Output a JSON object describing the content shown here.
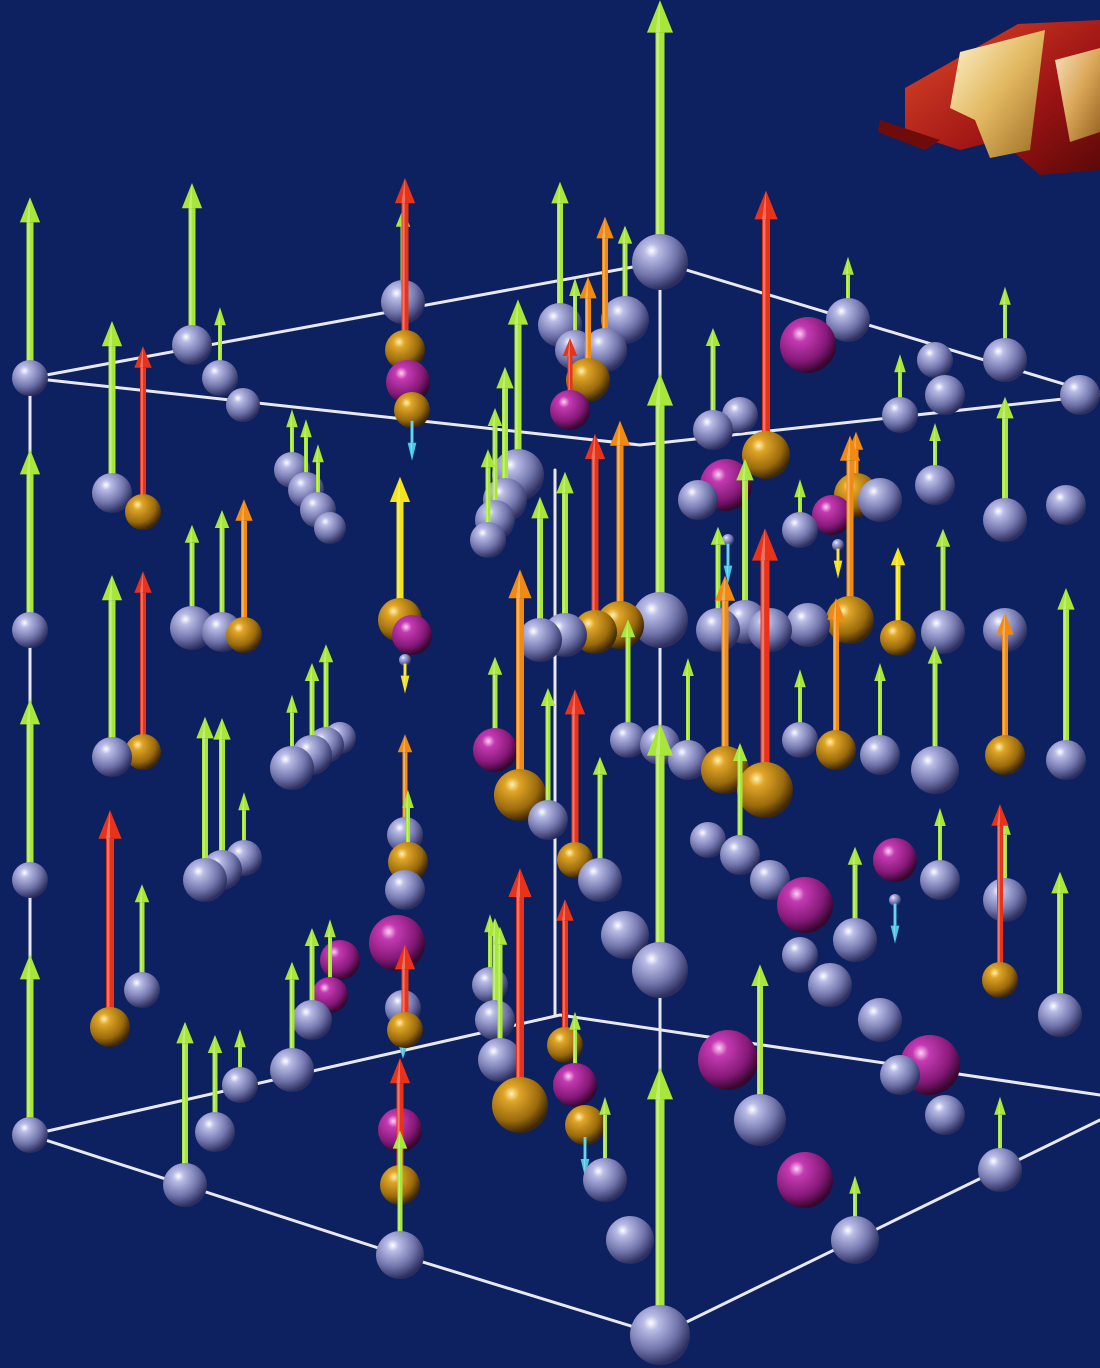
{
  "image": {
    "type": "3d-rendering",
    "subject": "spin-lattice-illustration",
    "background_color": "#0d2160",
    "frame_color": "#e8e8ee"
  },
  "legend_colors": {
    "host_atom": "#7b7fb5",
    "dopant_gold": "#b8860b",
    "dopant_magenta": "#a6209a",
    "spin_up_green": "#a8e63a",
    "spin_up_orange": "#f08a12",
    "spin_up_red": "#e8321a",
    "spin_up_yellow": "#f4e21c",
    "spin_down_cyan": "#4cc9e6"
  },
  "logo": {
    "letter": "F",
    "colors": [
      "#b01818",
      "#e8c070"
    ]
  }
}
